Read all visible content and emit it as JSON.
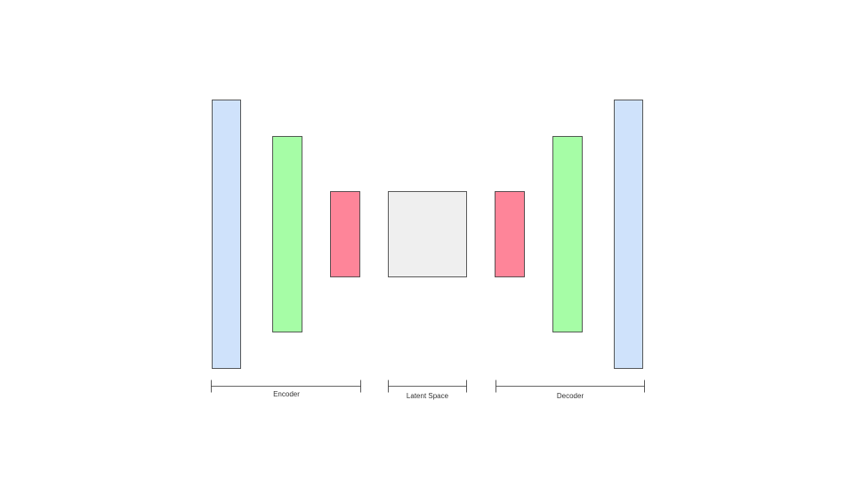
{
  "labels": {
    "encoder": "Encoder",
    "latent_space": "Latent Space",
    "decoder": "Decoder"
  },
  "colors": {
    "blue_layer": "#cfe2fb",
    "green_layer": "#a6fda6",
    "red_layer": "#fe8599",
    "latent_fill": "#efefef",
    "stroke": "#333333"
  }
}
